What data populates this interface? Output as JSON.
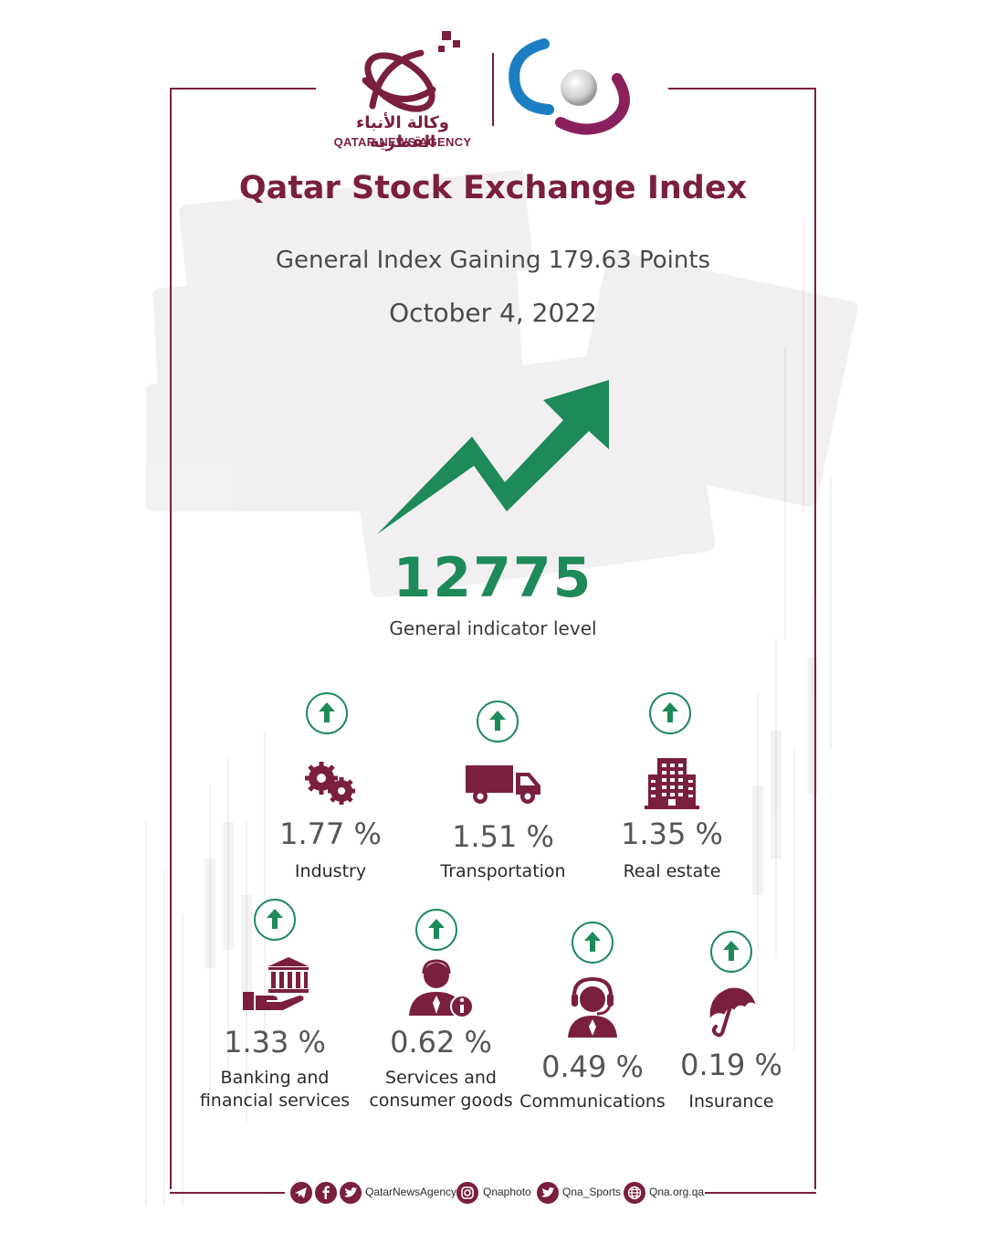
{
  "brand": {
    "agency_ar": "وكالة الأنباء القطرية",
    "agency_en": "QATAR NEWS AGENCY",
    "primary_color": "#7a1f3d",
    "accent_color": "#1e8a5a"
  },
  "header": {
    "title": "Qatar Stock Exchange Index",
    "subtitle": "General Index Gaining 179.63 Points",
    "date": "October 4, 2022"
  },
  "headline_value": {
    "value": "12775",
    "label": "General indicator level",
    "direction": "up"
  },
  "sectors": [
    {
      "pct": "1.77 %",
      "label": "Industry",
      "icon": "gears-icon",
      "direction": "up"
    },
    {
      "pct": "1.51 %",
      "label": "Transportation",
      "icon": "truck-icon",
      "direction": "up"
    },
    {
      "pct": "1.35 %",
      "label": "Real estate",
      "icon": "building-icon",
      "direction": "up"
    },
    {
      "pct": "1.33 %",
      "label": "Banking and\nfinancial services",
      "label_line1": "Banking and",
      "label_line2": "financial services",
      "icon": "bank-hand-icon",
      "direction": "up"
    },
    {
      "pct": "0.62 %",
      "label": "Services and\nconsumer goods",
      "label_line1": "Services and",
      "label_line2": "consumer goods",
      "icon": "service-agent-icon",
      "direction": "up"
    },
    {
      "pct": "0.49 %",
      "label": "Communications",
      "icon": "headset-icon",
      "direction": "up"
    },
    {
      "pct": "0.19 %",
      "label": "Insurance",
      "icon": "umbrella-icon",
      "direction": "up"
    }
  ],
  "footer": {
    "handle_main": "QatarNewsAgency",
    "handle_photo": "Qnaphoto",
    "handle_sports": "Qna_Sports",
    "website": "Qna.org.qa"
  }
}
